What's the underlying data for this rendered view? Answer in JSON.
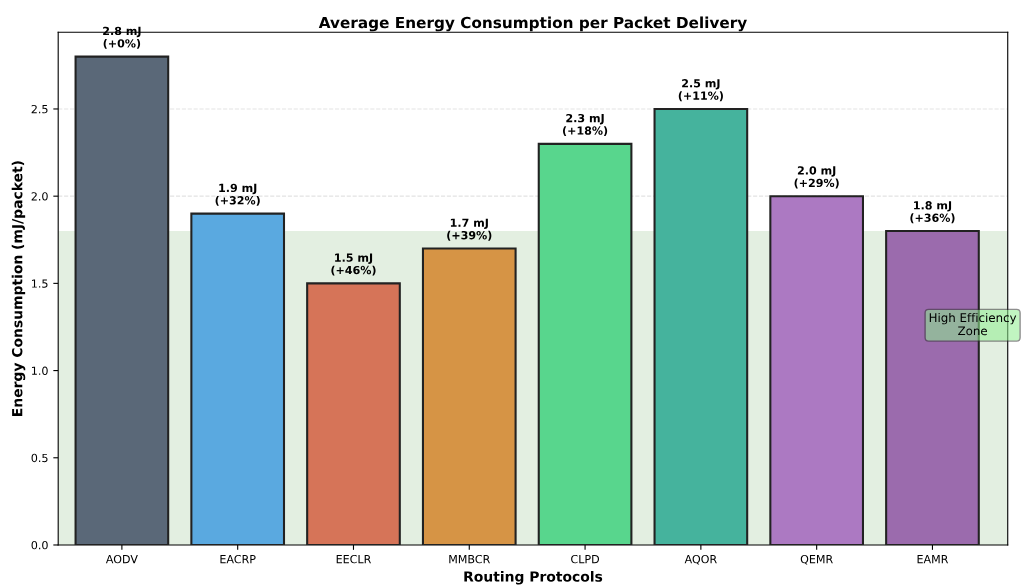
{
  "chart_data": {
    "type": "bar",
    "title": "Average Energy Consumption per Packet Delivery",
    "xlabel": "Routing Protocols",
    "ylabel": "Energy Consumption (mJ/packet)",
    "categories": [
      "AODV",
      "EACRP",
      "EECLR",
      "MMBCR",
      "CLPD",
      "AQOR",
      "QEMR",
      "EAMR"
    ],
    "values": [
      2.8,
      1.9,
      1.5,
      1.7,
      2.3,
      2.5,
      2.0,
      1.8
    ],
    "colors": [
      "#5a6878",
      "#5aa9e0",
      "#d67458",
      "#d69445",
      "#58d68d",
      "#45b39d",
      "#ac79c2",
      "#9b6bad"
    ],
    "value_labels": [
      "2.8 mJ\n(+0%)",
      "1.9 mJ\n(+32%)",
      "1.5 mJ\n(+46%)",
      "1.7 mJ\n(+39%)",
      "2.3 mJ\n(+18%)",
      "2.5 mJ\n(+11%)",
      "2.0 mJ\n(+29%)",
      "1.8 mJ\n(+36%)"
    ],
    "bands": [
      {
        "axis": "y",
        "from": 0,
        "to": 1.8,
        "label": "High Efficiency\nZone",
        "color": "#e3efe1"
      }
    ],
    "ylim": [
      0,
      2.94
    ],
    "yticks": [
      {
        "value": 0,
        "label": "0.0"
      },
      0.5,
      {
        "value": 1,
        "label": "1.0"
      },
      1.5,
      {
        "value": 2,
        "label": "2.0"
      },
      2.5
    ],
    "grid": "y"
  }
}
